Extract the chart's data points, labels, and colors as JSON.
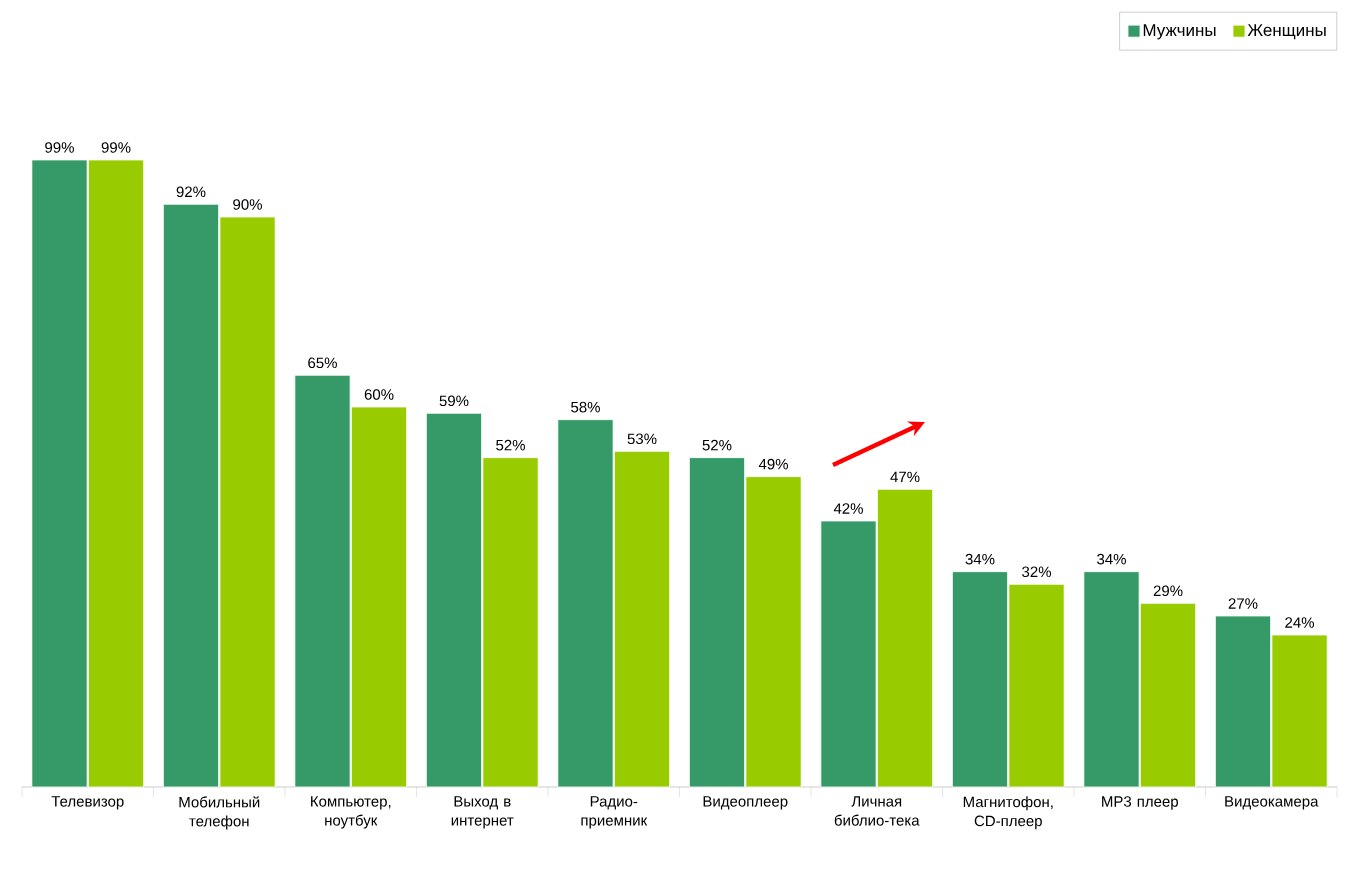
{
  "chart_data": {
    "type": "bar",
    "categories": [
      "Телевизор",
      "Мобильный телефон",
      "Компьютер, ноутбук",
      "Выход в интернет",
      "Радио-приемник",
      "Видеоплеер",
      "Личная библио-тека",
      "Магнитофон, CD-плеер",
      "MP3 плеер",
      "Видеокамера"
    ],
    "series": [
      {
        "name": "Мужчины",
        "color": "#359a68",
        "values": [
          99,
          92,
          65,
          59,
          58,
          52,
          42,
          34,
          34,
          27
        ],
        "value_labels": [
          "99%",
          "92%",
          "65%",
          "59%",
          "58%",
          "52%",
          "42%",
          "34%",
          "34%",
          "27%"
        ]
      },
      {
        "name": "Женщины",
        "color": "#99cc00",
        "values": [
          99,
          90,
          60,
          52,
          53,
          49,
          47,
          32,
          29,
          24
        ],
        "value_labels": [
          "99%",
          "90%",
          "60%",
          "52%",
          "53%",
          "49%",
          "47%",
          "32%",
          "29%",
          "24%"
        ]
      }
    ],
    "legend": "top right"
  }
}
